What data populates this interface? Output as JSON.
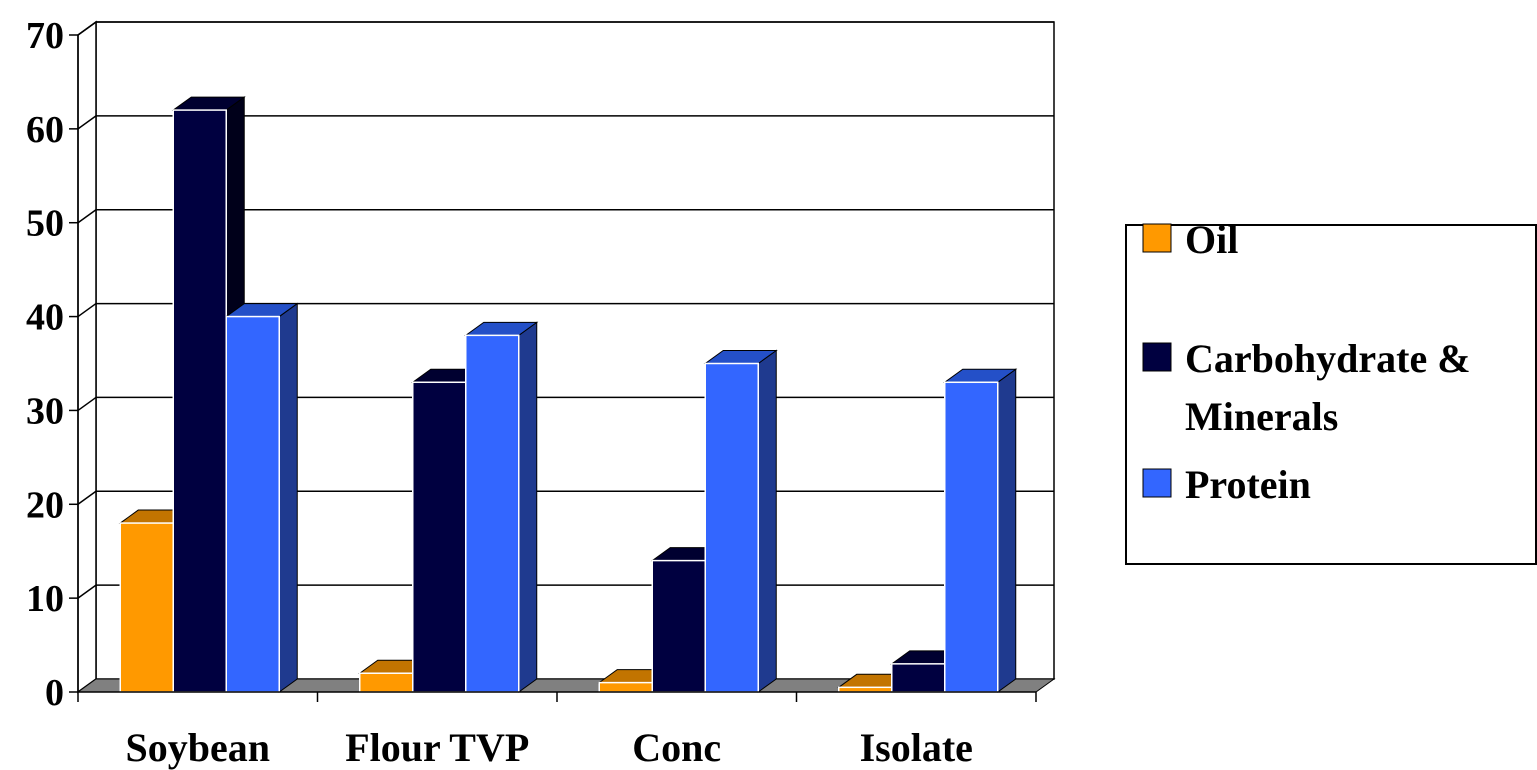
{
  "chart_data": {
    "type": "bar",
    "categories": [
      "Soybean",
      "Flour TVP",
      "Conc",
      "Isolate"
    ],
    "series": [
      {
        "name": "Oil",
        "values": [
          18,
          2,
          1,
          0.5
        ]
      },
      {
        "name": "Carbohydrate & Minerals",
        "values": [
          62,
          33,
          14,
          3
        ]
      },
      {
        "name": "Protein",
        "values": [
          40,
          38,
          35,
          33
        ]
      }
    ],
    "ylim": [
      0,
      70
    ],
    "yticks": [
      "0",
      "10",
      "20",
      "30",
      "40",
      "50",
      "60",
      "70"
    ],
    "grid": true,
    "legend_position": "right",
    "style": "3d-clustered-column"
  },
  "legend": {
    "items": [
      {
        "label": "Oil",
        "color": "#ff9900"
      },
      {
        "label": "Carbohydrate &",
        "label2": "Minerals",
        "color": "#000040"
      },
      {
        "label": "Protein",
        "color": "#3366ff"
      }
    ]
  },
  "colors": {
    "series_front": [
      "#ff9900",
      "#000040",
      "#3366ff"
    ],
    "series_top": [
      "#c27400",
      "#000030",
      "#2450c8"
    ],
    "series_side": [
      "#b36b00",
      "#00001a",
      "#1f3a8f"
    ],
    "floor": "#808080"
  }
}
